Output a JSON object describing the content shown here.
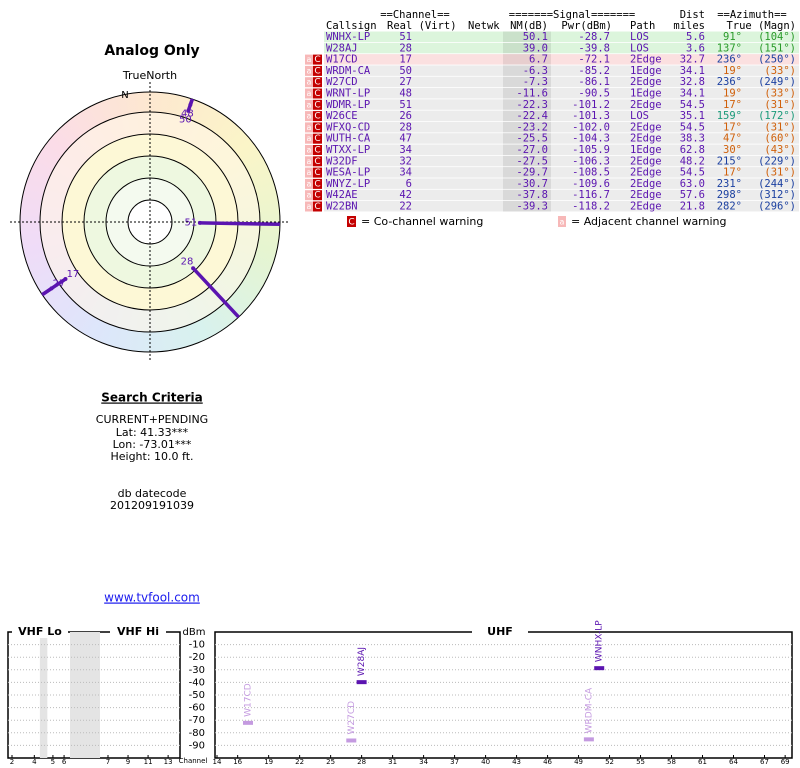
{
  "title": "Analog Only",
  "polar": {
    "north_label": "TrueNorth",
    "n": "N",
    "color": "#5b14b0",
    "stations": [
      {
        "label": "51",
        "azimuth": 91,
        "nm": 50.1
      },
      {
        "label": "28",
        "azimuth": 137,
        "nm": 39.0
      },
      {
        "label": "17",
        "azimuth": 236,
        "nm": 6.7
      },
      {
        "label": "50",
        "azimuth": 19,
        "nm": -6.3
      },
      {
        "label": "27",
        "azimuth": 236,
        "nm": -7.3
      },
      {
        "label": "48",
        "azimuth": 19,
        "nm": -11.6
      }
    ]
  },
  "table": {
    "group_headers": {
      "channel": "==Channel==",
      "signal": "=======Signal=======",
      "dist": "Dist",
      "azimuth": "==Azimuth=="
    },
    "headers": {
      "callsign": "Callsign",
      "real": "Real (Virt)",
      "netwk": "Netwk",
      "nm": "NM(dB)",
      "pwr": "Pwr(dBm)",
      "path": "Path",
      "dist": "miles",
      "az": "True (Magn)"
    },
    "rows": [
      {
        "callsign": "WNHX-LP",
        "real": "51",
        "nm": "50.1",
        "pwr": "-28.7",
        "path": "LOS",
        "dist": "5.6",
        "true": "91°",
        "magn": "(104°)",
        "bg": "#dcf5dc",
        "az_color": "#2a9a2a"
      },
      {
        "callsign": "W28AJ",
        "real": "28",
        "nm": "39.0",
        "pwr": "-39.8",
        "path": "LOS",
        "dist": "3.6",
        "true": "137°",
        "magn": "(151°)",
        "bg": "#dcf5dc",
        "az_color": "#2a9a2a"
      },
      {
        "co": "C",
        "adj": "a",
        "callsign": "W17CD",
        "real": "17",
        "nm": "6.7",
        "pwr": "-72.1",
        "path": "2Edge",
        "dist": "32.7",
        "true": "236°",
        "magn": "(250°)",
        "bg": "#fbe0e0",
        "az_color": "#1a3fa0"
      },
      {
        "co": "C",
        "adj": "a",
        "callsign": "WRDM-CA",
        "real": "50",
        "nm": "-6.3",
        "pwr": "-85.2",
        "path": "1Edge",
        "dist": "34.1",
        "true": "19°",
        "magn": "(33°)",
        "bg": "#ececec",
        "az_color": "#d0600a"
      },
      {
        "co": "C",
        "adj": "a",
        "callsign": "W27CD",
        "real": "27",
        "nm": "-7.3",
        "pwr": "-86.1",
        "path": "2Edge",
        "dist": "32.8",
        "true": "236°",
        "magn": "(249°)",
        "bg": "#ececec",
        "az_color": "#1a3fa0"
      },
      {
        "co": "C",
        "adj": "a",
        "callsign": "WRNT-LP",
        "real": "48",
        "nm": "-11.6",
        "pwr": "-90.5",
        "path": "1Edge",
        "dist": "34.1",
        "true": "19°",
        "magn": "(33°)",
        "bg": "#ececec",
        "az_color": "#d0600a"
      },
      {
        "co": "C",
        "adj": "a",
        "callsign": "WDMR-LP",
        "real": "51",
        "nm": "-22.3",
        "pwr": "-101.2",
        "path": "2Edge",
        "dist": "54.5",
        "true": "17°",
        "magn": "(31°)",
        "bg": "#ececec",
        "az_color": "#d0600a"
      },
      {
        "co": "C",
        "adj": "a",
        "callsign": "W26CE",
        "real": "26",
        "nm": "-22.4",
        "pwr": "-101.3",
        "path": "LOS",
        "dist": "35.1",
        "true": "159°",
        "magn": "(172°)",
        "bg": "#ececec",
        "az_color": "#1a9a7a"
      },
      {
        "co": "C",
        "adj": "a",
        "callsign": "WFXQ-CD",
        "real": "28",
        "nm": "-23.2",
        "pwr": "-102.0",
        "path": "2Edge",
        "dist": "54.5",
        "true": "17°",
        "magn": "(31°)",
        "bg": "#ececec",
        "az_color": "#d0600a"
      },
      {
        "co": "C",
        "adj": "a",
        "callsign": "WUTH-CA",
        "real": "47",
        "nm": "-25.5",
        "pwr": "-104.3",
        "path": "2Edge",
        "dist": "38.3",
        "true": "47°",
        "magn": "(60°)",
        "bg": "#ececec",
        "az_color": "#d0600a"
      },
      {
        "co": "C",
        "adj": "a",
        "callsign": "WTXX-LP",
        "real": "34",
        "nm": "-27.0",
        "pwr": "-105.9",
        "path": "1Edge",
        "dist": "62.8",
        "true": "30°",
        "magn": "(43°)",
        "bg": "#ececec",
        "az_color": "#d0600a"
      },
      {
        "co": "C",
        "adj": "a",
        "callsign": "W32DF",
        "real": "32",
        "nm": "-27.5",
        "pwr": "-106.3",
        "path": "2Edge",
        "dist": "48.2",
        "true": "215°",
        "magn": "(229°)",
        "bg": "#ececec",
        "az_color": "#1a3fa0"
      },
      {
        "co": "C",
        "adj": "a",
        "callsign": "WESA-LP",
        "real": "34",
        "nm": "-29.7",
        "pwr": "-108.5",
        "path": "2Edge",
        "dist": "54.5",
        "true": "17°",
        "magn": "(31°)",
        "bg": "#ececec",
        "az_color": "#d0600a"
      },
      {
        "co": "C",
        "adj": "a",
        "callsign": "WNYZ-LP",
        "real": "6",
        "nm": "-30.7",
        "pwr": "-109.6",
        "path": "2Edge",
        "dist": "63.0",
        "true": "231°",
        "magn": "(244°)",
        "bg": "#ececec",
        "az_color": "#1a3fa0"
      },
      {
        "co": "C",
        "adj": "a",
        "callsign": "W42AE",
        "real": "42",
        "nm": "-37.8",
        "pwr": "-116.7",
        "path": "2Edge",
        "dist": "57.6",
        "true": "298°",
        "magn": "(312°)",
        "bg": "#ececec",
        "az_color": "#1a3fa0"
      },
      {
        "co": "C",
        "adj": "a",
        "callsign": "W22BN",
        "real": "22",
        "nm": "-39.3",
        "pwr": "-118.2",
        "path": "2Edge",
        "dist": "21.8",
        "true": "282°",
        "magn": "(296°)",
        "bg": "#ececec",
        "az_color": "#1a3fa0"
      }
    ]
  },
  "legend": {
    "co_mark": "C",
    "co_text": "= Co-channel warning",
    "adj_mark": "a",
    "adj_text": "= Adjacent channel warning"
  },
  "criteria": {
    "title": "Search Criteria",
    "mode": "CURRENT+PENDING",
    "lat": "Lat: 41.33***",
    "lon": "Lon: -73.01***",
    "height": "Height: 10.0 ft.",
    "datecode_label": "db datecode",
    "datecode": "201209191039"
  },
  "link": "www.tvfool.com",
  "chart_data": {
    "type": "spectrum",
    "sections": [
      "VHF Lo",
      "VHF Hi",
      "UHF"
    ],
    "ylabel": "dBm",
    "xlabel": "Channel",
    "ylim": [
      0,
      -100
    ],
    "yticks": [
      -10,
      -20,
      -30,
      -40,
      -50,
      -60,
      -70,
      -80,
      -90
    ],
    "xticks": [
      2,
      4,
      5,
      6,
      7,
      9,
      11,
      13,
      14,
      16,
      19,
      22,
      25,
      28,
      31,
      34,
      37,
      40,
      43,
      46,
      49,
      52,
      55,
      58,
      61,
      64,
      67,
      69
    ],
    "grid": true,
    "series": [
      {
        "name": "W17CD",
        "channel": 17,
        "dbm": -72.1,
        "color": "#c49ae0"
      },
      {
        "name": "W28AJ",
        "channel": 28,
        "dbm": -39.8,
        "color": "#5b14b0"
      },
      {
        "name": "W27CD",
        "channel": 27,
        "dbm": -86.1,
        "color": "#c49ae0"
      },
      {
        "name": "WNHX-LP",
        "channel": 51,
        "dbm": -28.7,
        "color": "#5b14b0"
      },
      {
        "name": "WRDM-CA",
        "channel": 50,
        "dbm": -85.2,
        "color": "#c49ae0"
      }
    ]
  }
}
